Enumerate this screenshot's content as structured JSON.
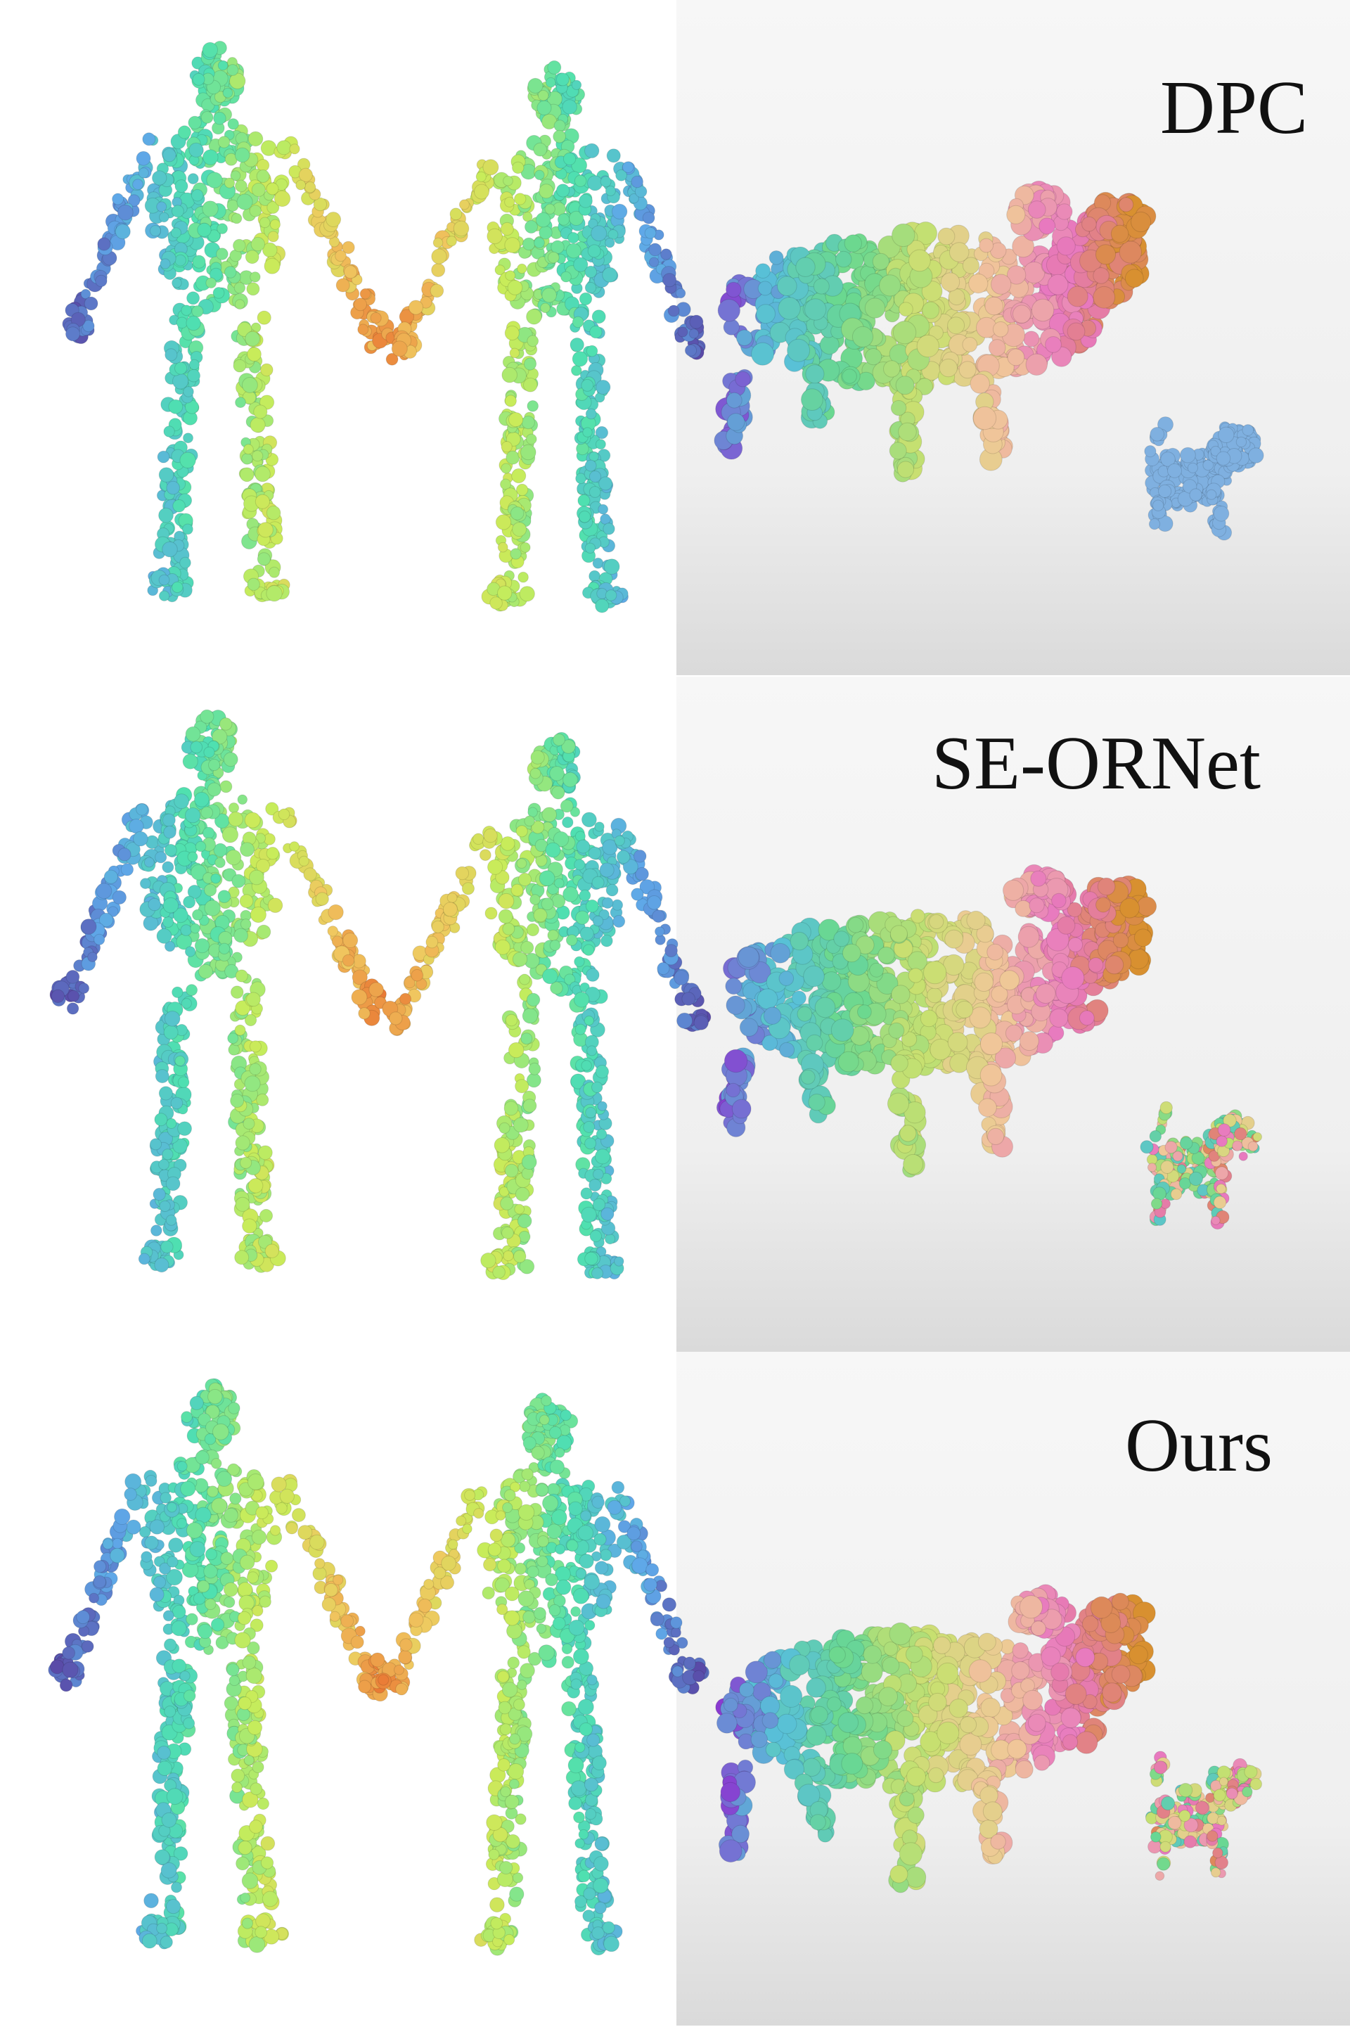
{
  "figure": {
    "rows": [
      {
        "method": "DPC"
      },
      {
        "method": "SE-ORNet"
      },
      {
        "method": "Ours"
      }
    ]
  },
  "colors": {
    "background_left": "#ffffff",
    "background_right_top": "#f4f4f4",
    "background_right_bottom": "#dcdcdc",
    "label_text": "#111111",
    "colormap_human": [
      "#5a4aa8",
      "#5fa8e8",
      "#4fe0b0",
      "#c8ec5a",
      "#f0c860",
      "#e86a2c"
    ],
    "colormap_cow": [
      "#8a3ad0",
      "#58c0d8",
      "#6ad890",
      "#c8e070",
      "#f0c898",
      "#e878c0",
      "#d89030"
    ],
    "dog_reference": "#7fb0e0"
  }
}
